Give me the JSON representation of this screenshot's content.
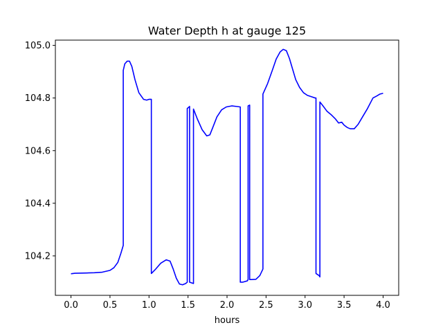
{
  "chart_data": {
    "type": "line",
    "title": "Water Depth h at gauge 125",
    "xlabel": "hours",
    "ylabel": "",
    "xlim": [
      -0.2,
      4.2
    ],
    "ylim": [
      104.05,
      105.02
    ],
    "grid": false,
    "x_ticks": [
      0.0,
      0.5,
      1.0,
      1.5,
      2.0,
      2.5,
      3.0,
      3.5,
      4.0
    ],
    "x_tick_labels": [
      "0.0",
      "0.5",
      "1.0",
      "1.5",
      "2.0",
      "2.5",
      "3.0",
      "3.5",
      "4.0"
    ],
    "y_ticks": [
      104.2,
      104.4,
      104.6,
      104.8,
      105.0
    ],
    "y_tick_labels": [
      "104.2",
      "104.4",
      "104.6",
      "104.8",
      "105.0"
    ],
    "series": [
      {
        "color": "#0000ff",
        "x": [
          0.0,
          0.05,
          0.2,
          0.3,
          0.4,
          0.5,
          0.55,
          0.6,
          0.64,
          0.67,
          0.67,
          0.69,
          0.72,
          0.75,
          0.78,
          0.82,
          0.87,
          0.93,
          0.97,
          1.0,
          1.02,
          1.03,
          1.03,
          1.08,
          1.15,
          1.22,
          1.27,
          1.31,
          1.35,
          1.39,
          1.43,
          1.47,
          1.49,
          1.49,
          1.51,
          1.52,
          1.52,
          1.57,
          1.57,
          1.62,
          1.68,
          1.74,
          1.78,
          1.82,
          1.87,
          1.93,
          1.99,
          2.06,
          2.12,
          2.17,
          2.17,
          2.2,
          2.26,
          2.27,
          2.27,
          2.29,
          2.29,
          2.31,
          2.37,
          2.42,
          2.46,
          2.46,
          2.52,
          2.58,
          2.63,
          2.68,
          2.72,
          2.76,
          2.8,
          2.84,
          2.88,
          2.93,
          2.98,
          3.03,
          3.08,
          3.13,
          3.14,
          3.14,
          3.18,
          3.19,
          3.19,
          3.23,
          3.28,
          3.34,
          3.39,
          3.43,
          3.47,
          3.5,
          3.54,
          3.58,
          3.63,
          3.68,
          3.74,
          3.8,
          3.87,
          3.92,
          3.96,
          4.0
        ],
        "y": [
          104.132,
          104.134,
          104.135,
          104.136,
          104.138,
          104.145,
          104.155,
          104.175,
          104.21,
          104.24,
          104.905,
          104.93,
          104.94,
          104.94,
          104.92,
          104.87,
          104.82,
          104.795,
          104.792,
          104.795,
          104.795,
          104.795,
          104.133,
          104.148,
          104.172,
          104.185,
          104.18,
          104.15,
          104.115,
          104.093,
          104.09,
          104.095,
          104.1,
          104.76,
          104.765,
          104.768,
          104.1,
          104.095,
          104.758,
          104.72,
          104.68,
          104.656,
          104.66,
          104.69,
          104.728,
          104.755,
          104.766,
          104.77,
          104.768,
          104.766,
          104.1,
          104.1,
          104.105,
          104.11,
          104.77,
          104.773,
          104.11,
          104.11,
          104.111,
          104.125,
          104.15,
          104.815,
          104.855,
          104.905,
          104.948,
          104.975,
          104.985,
          104.98,
          104.95,
          104.91,
          104.87,
          104.84,
          104.82,
          104.81,
          104.805,
          104.8,
          104.8,
          104.133,
          104.125,
          104.12,
          104.785,
          104.77,
          104.75,
          104.735,
          104.72,
          104.705,
          104.708,
          104.697,
          104.688,
          104.683,
          104.683,
          104.7,
          104.73,
          104.76,
          104.8,
          104.808,
          104.815,
          104.818
        ]
      }
    ]
  }
}
